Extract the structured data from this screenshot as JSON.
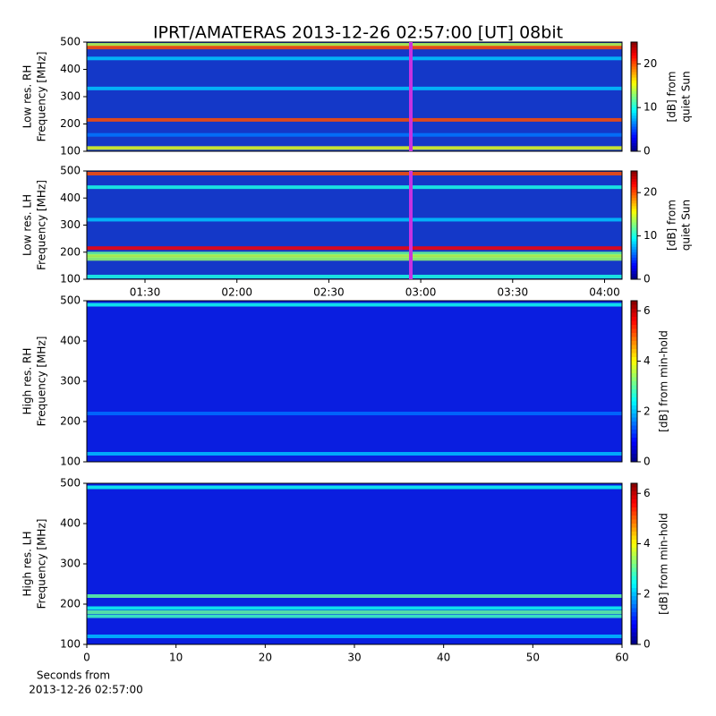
{
  "title": "IPRT/AMATERAS 2013-12-26 02:57:00 [UT]   08bit",
  "time_ticks": [
    "01:30",
    "02:00",
    "02:30",
    "03:00",
    "03:30",
    "04:00"
  ],
  "xlabel": [
    "Seconds from",
    "2013-12-26 02:57:00"
  ],
  "chart_data": [
    {
      "type": "heatmap",
      "ylabel": [
        "Low res. RH",
        "Frequency [MHz]"
      ],
      "colorbar_label": [
        "[dB] from",
        "quiet Sun"
      ],
      "ylim": [
        100,
        500
      ],
      "yticks": [
        100,
        200,
        300,
        400,
        500
      ],
      "clim": [
        0,
        25
      ],
      "cticks": [
        0,
        10,
        20
      ],
      "bands": [
        {
          "freq": 490,
          "db": 14
        },
        {
          "freq": 480,
          "db": 20
        },
        {
          "freq": 440,
          "db": 8
        },
        {
          "freq": 330,
          "db": 8
        },
        {
          "freq": 215,
          "db": 20
        },
        {
          "freq": 160,
          "db": 6
        },
        {
          "freq": 112,
          "db": 15
        }
      ]
    },
    {
      "type": "heatmap",
      "ylabel": [
        "Low res. LH",
        "Frequency [MHz]"
      ],
      "colorbar_label": [
        "[dB] from",
        "quiet Sun"
      ],
      "ylim": [
        100,
        500
      ],
      "yticks": [
        100,
        200,
        300,
        400,
        500
      ],
      "clim": [
        0,
        25
      ],
      "cticks": [
        0,
        10,
        20
      ],
      "bands": [
        {
          "freq": 490,
          "db": 20
        },
        {
          "freq": 440,
          "db": 10
        },
        {
          "freq": 320,
          "db": 8
        },
        {
          "freq": 215,
          "db": 22
        },
        {
          "freq": 195,
          "db": 12
        },
        {
          "freq": 185,
          "db": 14
        },
        {
          "freq": 175,
          "db": 13
        },
        {
          "freq": 110,
          "db": 10
        }
      ]
    },
    {
      "type": "heatmap",
      "ylabel": [
        "High res. RH",
        "Frequency [MHz]"
      ],
      "colorbar_label": [
        "[dB] from min-hold"
      ],
      "ylim": [
        100,
        500
      ],
      "yticks": [
        100,
        200,
        300,
        400,
        500
      ],
      "clim": [
        0,
        6.4
      ],
      "cticks": [
        0,
        2,
        4,
        6
      ],
      "bands": [
        {
          "freq": 490,
          "db": 2.5
        },
        {
          "freq": 220,
          "db": 1.5
        },
        {
          "freq": 120,
          "db": 2
        }
      ]
    },
    {
      "type": "heatmap",
      "ylabel": [
        "High res. LH",
        "Frequency [MHz]"
      ],
      "colorbar_label": [
        "[dB] from min-hold"
      ],
      "ylim": [
        100,
        500
      ],
      "yticks": [
        100,
        200,
        300,
        400,
        500
      ],
      "clim": [
        0,
        6.4
      ],
      "cticks": [
        0,
        2,
        4,
        6
      ],
      "xlim": [
        0,
        60
      ],
      "xticks": [
        0,
        10,
        20,
        30,
        40,
        50,
        60
      ],
      "bands": [
        {
          "freq": 490,
          "db": 2.5
        },
        {
          "freq": 220,
          "db": 3
        },
        {
          "freq": 190,
          "db": 2.5
        },
        {
          "freq": 180,
          "db": 3
        },
        {
          "freq": 170,
          "db": 2.8
        },
        {
          "freq": 120,
          "db": 2
        }
      ]
    }
  ]
}
